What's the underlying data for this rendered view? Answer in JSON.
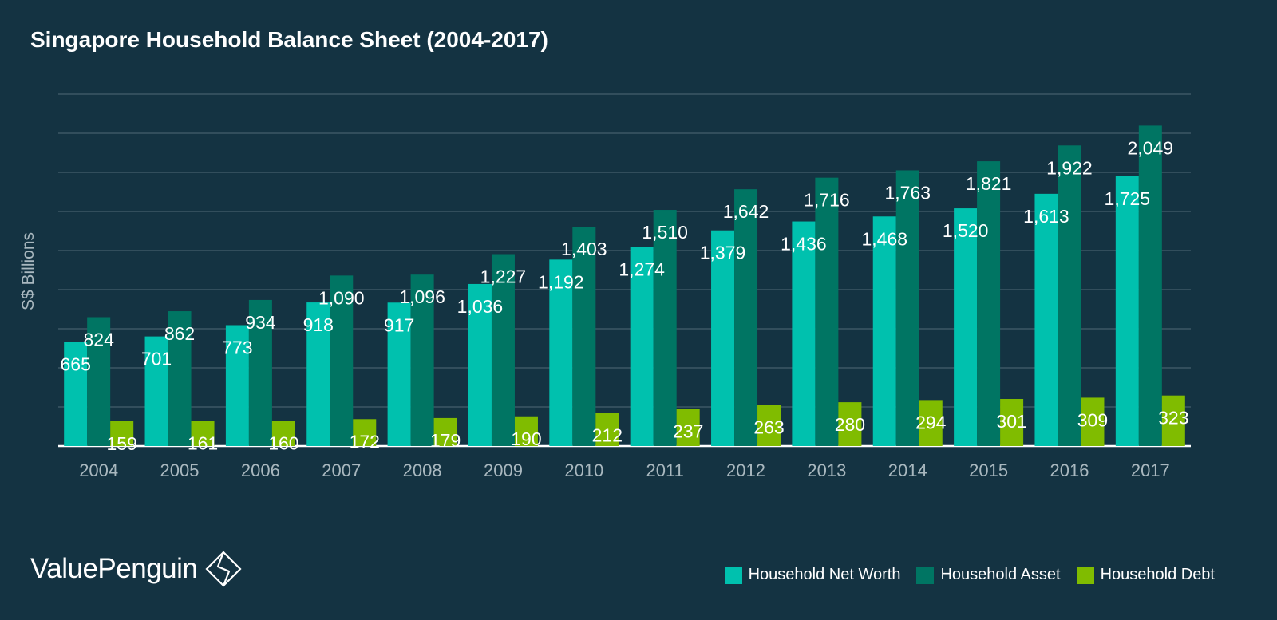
{
  "chart_data": {
    "type": "bar",
    "title": "Singapore Household Balance Sheet (2004-2017)",
    "xlabel": "",
    "ylabel": "S$ Billions",
    "ylim": [
      0,
      2250
    ],
    "grid": true,
    "legend_position": "bottom-right",
    "categories": [
      "2004",
      "2005",
      "2006",
      "2007",
      "2008",
      "2009",
      "2010",
      "2011",
      "2012",
      "2013",
      "2014",
      "2015",
      "2016",
      "2017"
    ],
    "series": [
      {
        "name": "Household Net Worth",
        "color": "#00c1ae",
        "values": [
          665,
          701,
          773,
          918,
          917,
          1036,
          1192,
          1274,
          1379,
          1436,
          1468,
          1520,
          1613,
          1725
        ],
        "labels": [
          "665",
          "701",
          "773",
          "918",
          "917",
          "1,036",
          "1,192",
          "1,274",
          "1,379",
          "1,436",
          "1,468",
          "1,520",
          "1,613",
          "1,725"
        ]
      },
      {
        "name": "Household Asset",
        "color": "#007563",
        "values": [
          824,
          862,
          934,
          1090,
          1096,
          1227,
          1403,
          1510,
          1642,
          1716,
          1763,
          1821,
          1922,
          2049
        ],
        "labels": [
          "824",
          "862",
          "934",
          "1,090",
          "1,096",
          "1,227",
          "1,403",
          "1,510",
          "1,642",
          "1,716",
          "1,763",
          "1,821",
          "1,922",
          "2,049"
        ]
      },
      {
        "name": "Household Debt",
        "color": "#80bc00",
        "values": [
          159,
          161,
          160,
          172,
          179,
          190,
          212,
          237,
          263,
          280,
          294,
          301,
          309,
          323
        ],
        "labels": [
          "159",
          "161",
          "160",
          "172",
          "179",
          "190",
          "212",
          "237",
          "263",
          "280",
          "294",
          "301",
          "309",
          "323"
        ]
      }
    ]
  },
  "brand": {
    "name": "ValuePenguin",
    "logo_icon": "diamond-logo-icon"
  },
  "colors": {
    "background": "#143342",
    "grid": "#4f6a77",
    "axis_text": "#a9b8bf"
  }
}
